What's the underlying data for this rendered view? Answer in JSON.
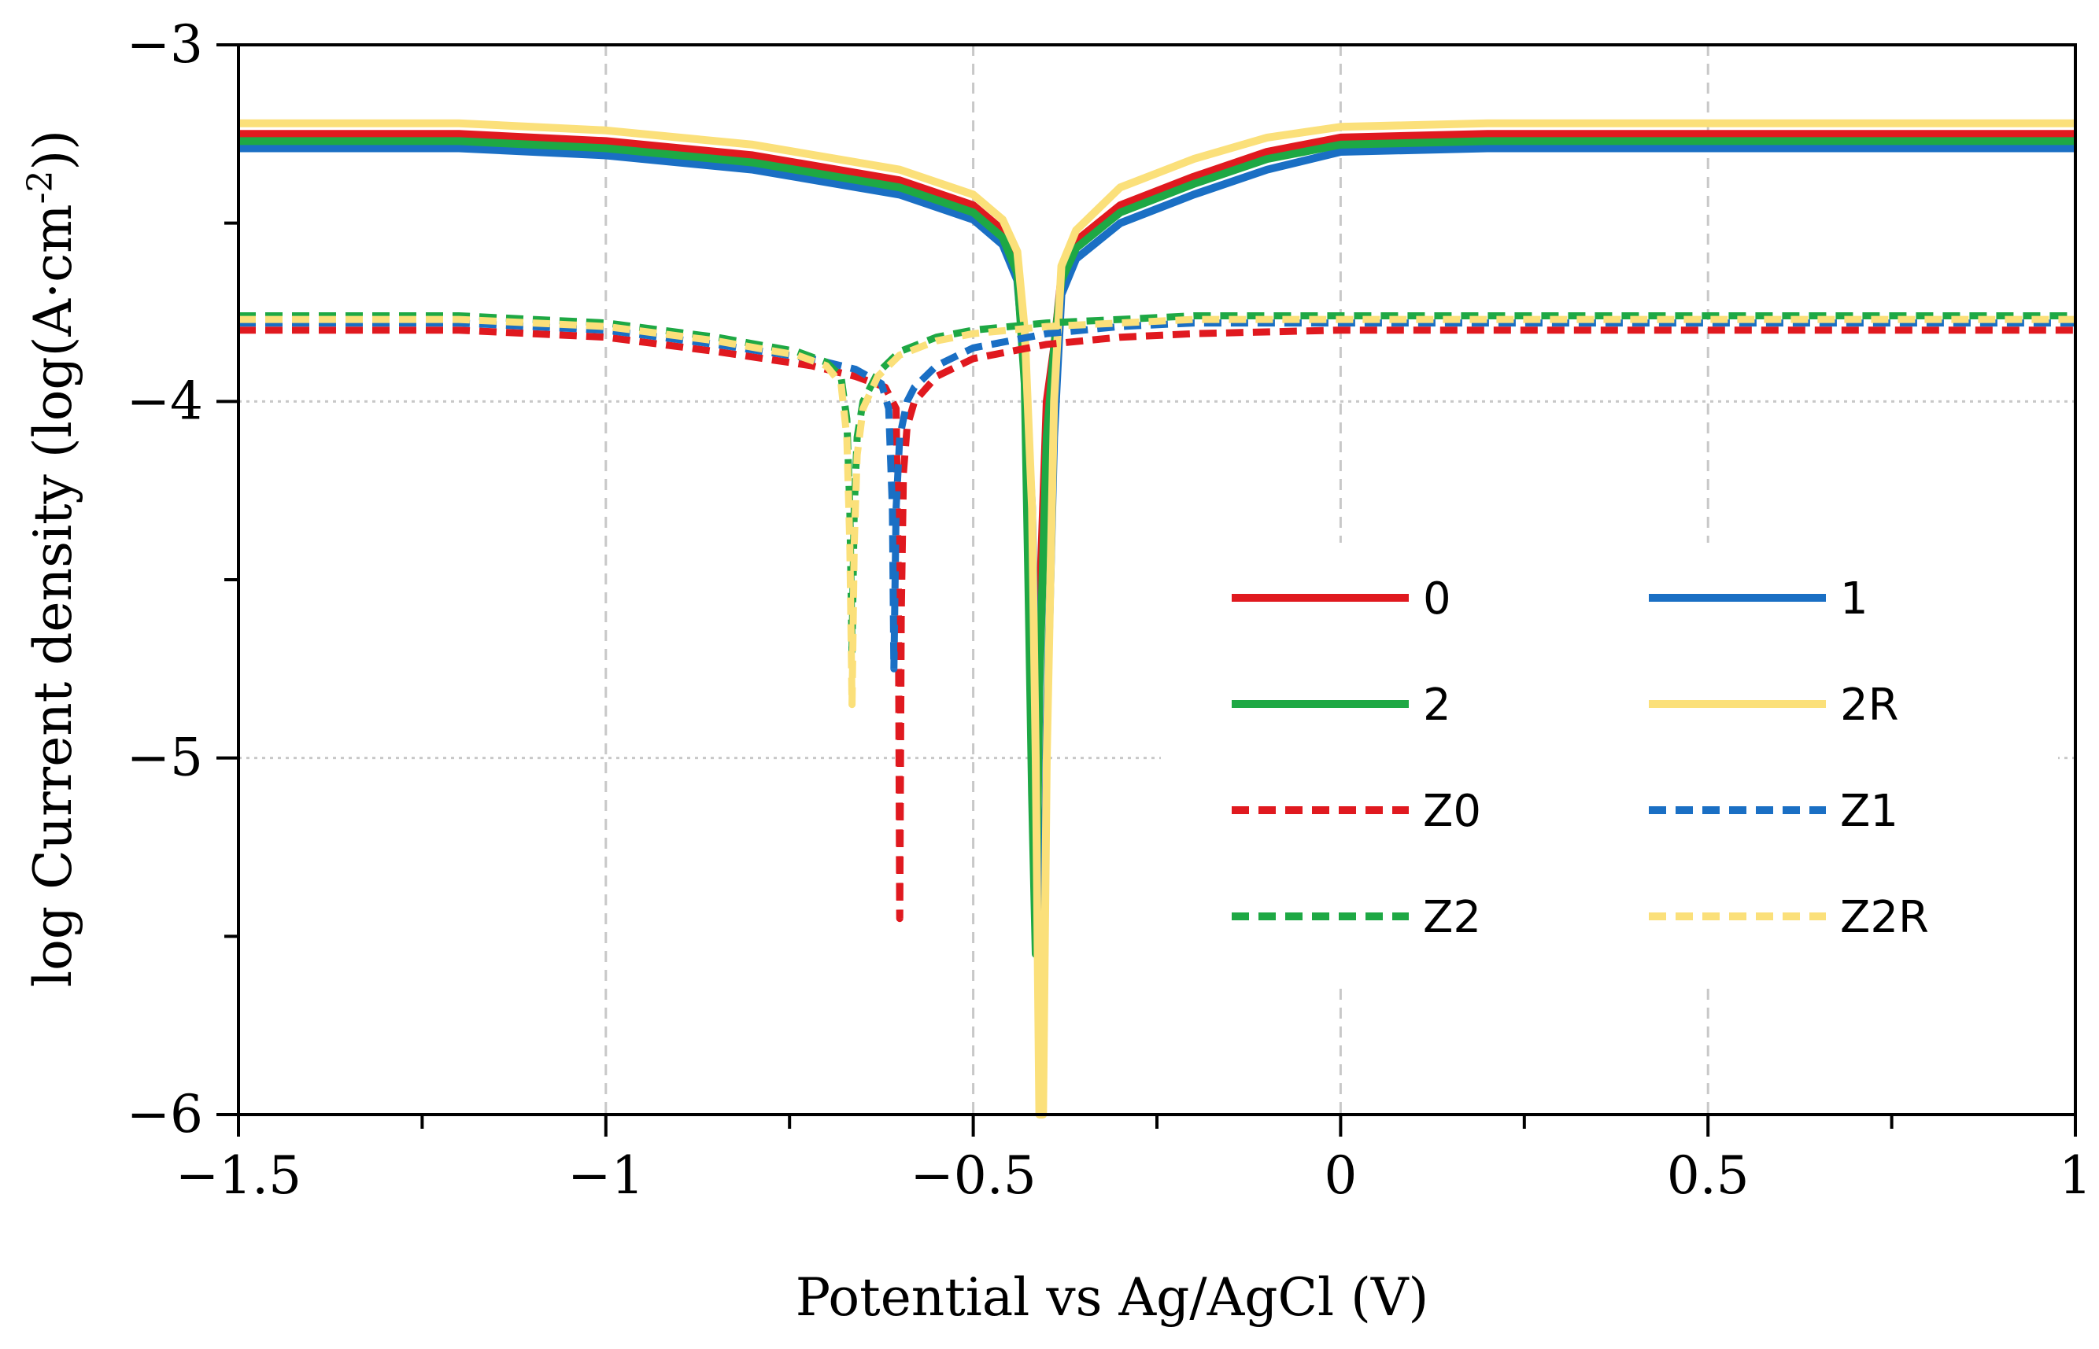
{
  "chart_data": {
    "type": "line",
    "title": "",
    "xlabel": "Potential vs Ag/AgCl (V)",
    "ylabel_main": "log Current density (log(A·cm",
    "ylabel_sup": "-2",
    "ylabel_end": "))",
    "xlim": [
      -1.5,
      1
    ],
    "ylim": [
      -6,
      -3
    ],
    "x_ticks": [
      -1.5,
      -1,
      -0.5,
      0,
      0.5,
      1
    ],
    "x_tick_labels": [
      "−1.5",
      "−1",
      "−0.5",
      "0",
      "0.5",
      "1"
    ],
    "y_ticks": [
      -6,
      -5,
      -4,
      -3
    ],
    "y_tick_labels": [
      "−6",
      "−5",
      "−4",
      "−3"
    ],
    "grid": true,
    "legend_position": "lower-right",
    "series": [
      {
        "name": "0",
        "color": "#e0191f",
        "style": "solid",
        "x": [
          -1.5,
          -1.2,
          -1.0,
          -0.8,
          -0.6,
          -0.5,
          -0.46,
          -0.44,
          -0.43,
          -0.425,
          -0.42,
          -0.415,
          -0.41,
          -0.4,
          -0.39,
          -0.38,
          -0.36,
          -0.3,
          -0.2,
          -0.1,
          0.0,
          0.2,
          0.5,
          1.0
        ],
        "y": [
          -3.25,
          -3.25,
          -3.27,
          -3.31,
          -3.38,
          -3.45,
          -3.52,
          -3.62,
          -3.9,
          -4.4,
          -4.9,
          -5.3,
          -4.6,
          -4.0,
          -3.85,
          -3.65,
          -3.55,
          -3.45,
          -3.37,
          -3.3,
          -3.26,
          -3.25,
          -3.25,
          -3.25
        ]
      },
      {
        "name": "1",
        "color": "#1a6fc4",
        "style": "solid",
        "x": [
          -1.5,
          -1.2,
          -1.0,
          -0.8,
          -0.6,
          -0.5,
          -0.46,
          -0.44,
          -0.43,
          -0.42,
          -0.415,
          -0.41,
          -0.405,
          -0.4,
          -0.39,
          -0.38,
          -0.36,
          -0.3,
          -0.2,
          -0.1,
          0.0,
          0.2,
          0.5,
          1.0
        ],
        "y": [
          -3.29,
          -3.29,
          -3.31,
          -3.35,
          -3.42,
          -3.49,
          -3.56,
          -3.66,
          -3.9,
          -4.3,
          -4.8,
          -5.4,
          -5.75,
          -4.9,
          -4.1,
          -3.7,
          -3.6,
          -3.5,
          -3.42,
          -3.35,
          -3.3,
          -3.29,
          -3.29,
          -3.29
        ]
      },
      {
        "name": "2",
        "color": "#1ea844",
        "style": "solid",
        "x": [
          -1.5,
          -1.2,
          -1.0,
          -0.8,
          -0.6,
          -0.5,
          -0.46,
          -0.44,
          -0.43,
          -0.425,
          -0.42,
          -0.415,
          -0.41,
          -0.4,
          -0.39,
          -0.38,
          -0.36,
          -0.3,
          -0.2,
          -0.1,
          0.0,
          0.2,
          0.5,
          1.0
        ],
        "y": [
          -3.27,
          -3.27,
          -3.29,
          -3.33,
          -3.4,
          -3.47,
          -3.54,
          -3.64,
          -3.95,
          -4.5,
          -5.1,
          -5.55,
          -4.8,
          -4.1,
          -3.85,
          -3.66,
          -3.57,
          -3.47,
          -3.39,
          -3.32,
          -3.28,
          -3.27,
          -3.27,
          -3.27
        ]
      },
      {
        "name": "2R",
        "color": "#fbe07a",
        "style": "solid",
        "x": [
          -1.5,
          -1.2,
          -1.0,
          -0.8,
          -0.6,
          -0.5,
          -0.46,
          -0.44,
          -0.43,
          -0.42,
          -0.415,
          -0.41,
          -0.405,
          -0.4,
          -0.39,
          -0.38,
          -0.36,
          -0.3,
          -0.2,
          -0.1,
          0.0,
          0.2,
          0.5,
          1.0
        ],
        "y": [
          -3.22,
          -3.22,
          -3.24,
          -3.28,
          -3.35,
          -3.42,
          -3.49,
          -3.58,
          -3.8,
          -4.3,
          -5.0,
          -6.0,
          -6.0,
          -5.0,
          -4.0,
          -3.62,
          -3.52,
          -3.4,
          -3.32,
          -3.26,
          -3.23,
          -3.22,
          -3.22,
          -3.22
        ]
      },
      {
        "name": "Z0",
        "color": "#e0191f",
        "style": "dashed",
        "x": [
          -1.5,
          -1.2,
          -1.0,
          -0.85,
          -0.72,
          -0.66,
          -0.62,
          -0.605,
          -0.602,
          -0.6,
          -0.598,
          -0.595,
          -0.59,
          -0.58,
          -0.55,
          -0.5,
          -0.4,
          -0.3,
          -0.2,
          0.0,
          0.5,
          1.0
        ],
        "y": [
          -3.8,
          -3.8,
          -3.82,
          -3.86,
          -3.9,
          -3.93,
          -3.96,
          -4.02,
          -4.5,
          -5.45,
          -4.6,
          -4.2,
          -4.07,
          -4.0,
          -3.93,
          -3.88,
          -3.84,
          -3.82,
          -3.81,
          -3.8,
          -3.8,
          -3.8
        ]
      },
      {
        "name": "Z1",
        "color": "#1a6fc4",
        "style": "dashed",
        "x": [
          -1.5,
          -1.2,
          -1.0,
          -0.85,
          -0.72,
          -0.66,
          -0.625,
          -0.615,
          -0.61,
          -0.608,
          -0.605,
          -0.6,
          -0.59,
          -0.58,
          -0.55,
          -0.5,
          -0.4,
          -0.3,
          -0.2,
          0.0,
          0.5,
          1.0
        ],
        "y": [
          -3.78,
          -3.78,
          -3.8,
          -3.84,
          -3.88,
          -3.91,
          -3.95,
          -4.02,
          -4.3,
          -4.75,
          -4.3,
          -4.1,
          -4.0,
          -3.96,
          -3.9,
          -3.85,
          -3.81,
          -3.79,
          -3.78,
          -3.78,
          -3.78,
          -3.78
        ]
      },
      {
        "name": "Z2",
        "color": "#1ea844",
        "style": "dashed",
        "x": [
          -1.5,
          -1.2,
          -1.0,
          -0.85,
          -0.74,
          -0.7,
          -0.68,
          -0.672,
          -0.668,
          -0.665,
          -0.662,
          -0.658,
          -0.65,
          -0.63,
          -0.6,
          -0.55,
          -0.5,
          -0.4,
          -0.3,
          -0.2,
          0.0,
          0.5,
          1.0
        ],
        "y": [
          -3.76,
          -3.76,
          -3.78,
          -3.82,
          -3.86,
          -3.89,
          -3.93,
          -4.05,
          -4.3,
          -4.7,
          -4.3,
          -4.1,
          -4.0,
          -3.92,
          -3.86,
          -3.82,
          -3.8,
          -3.78,
          -3.77,
          -3.76,
          -3.76,
          -3.76,
          -3.76
        ]
      },
      {
        "name": "Z2R",
        "color": "#fbe07a",
        "style": "dashed",
        "x": [
          -1.5,
          -1.2,
          -1.0,
          -0.85,
          -0.74,
          -0.7,
          -0.68,
          -0.672,
          -0.668,
          -0.665,
          -0.662,
          -0.658,
          -0.65,
          -0.63,
          -0.6,
          -0.55,
          -0.5,
          -0.4,
          -0.3,
          -0.2,
          0.0,
          0.5,
          1.0
        ],
        "y": [
          -3.77,
          -3.77,
          -3.79,
          -3.83,
          -3.87,
          -3.9,
          -3.95,
          -4.1,
          -4.4,
          -4.85,
          -4.4,
          -4.15,
          -4.02,
          -3.93,
          -3.87,
          -3.83,
          -3.81,
          -3.79,
          -3.78,
          -3.77,
          -3.77,
          -3.77,
          -3.77
        ]
      }
    ]
  }
}
